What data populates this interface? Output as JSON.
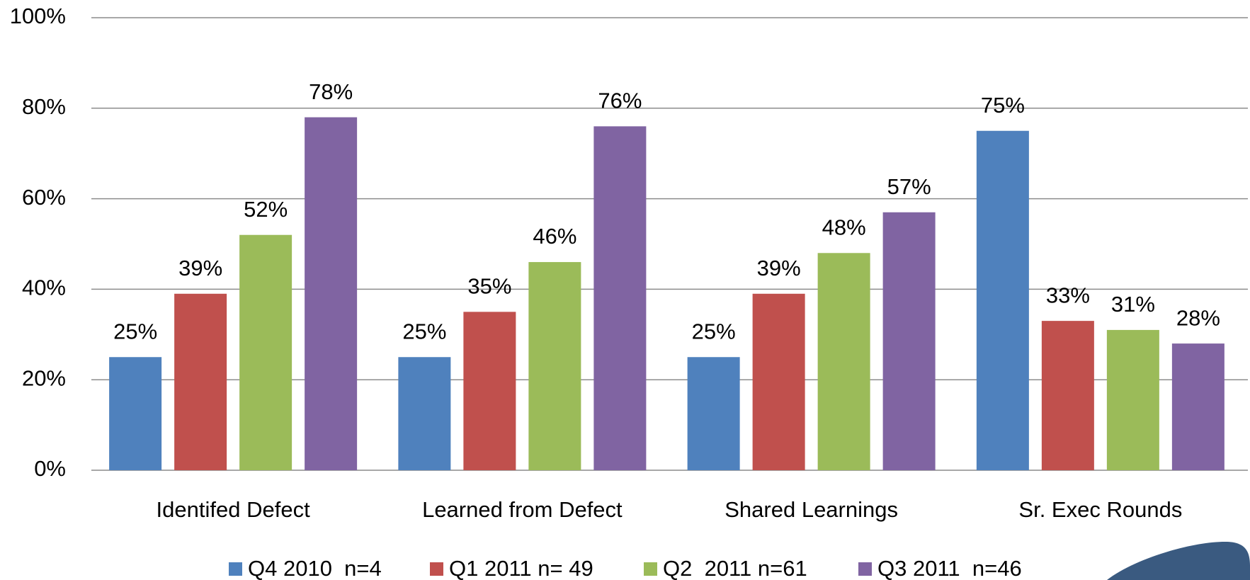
{
  "chart_data": {
    "type": "bar",
    "categories": [
      "Identifed Defect",
      "Learned from Defect",
      "Shared Learnings",
      "Sr. Exec Rounds"
    ],
    "series": [
      {
        "name": "Q4 2010  n=4",
        "color": "#4f81bd",
        "values": [
          25,
          25,
          25,
          75
        ],
        "value_labels": [
          "25%",
          "25%",
          "25%",
          "75%"
        ]
      },
      {
        "name": "Q1 2011 n= 49",
        "color": "#c0504d",
        "values": [
          39,
          35,
          39,
          33
        ],
        "value_labels": [
          "39%",
          "35%",
          "39%",
          "33%"
        ]
      },
      {
        "name": "Q2  2011 n=61",
        "color": "#9bbb59",
        "values": [
          52,
          46,
          48,
          31
        ],
        "value_labels": [
          "52%",
          "46%",
          "48%",
          "31%"
        ]
      },
      {
        "name": "Q3 2011  n=46",
        "color": "#8064a2",
        "values": [
          78,
          76,
          57,
          28
        ],
        "value_labels": [
          "78%",
          "76%",
          "57%",
          "28%"
        ]
      }
    ],
    "ylim": [
      0,
      100
    ],
    "yticks": [
      {
        "value": 0,
        "label": "0%"
      },
      {
        "value": 20,
        "label": "20%"
      },
      {
        "value": 40,
        "label": "40%"
      },
      {
        "value": 60,
        "label": "60%"
      },
      {
        "value": 80,
        "label": "80%"
      },
      {
        "value": 100,
        "label": "100%"
      }
    ],
    "grid": true,
    "legend": "bottom"
  }
}
